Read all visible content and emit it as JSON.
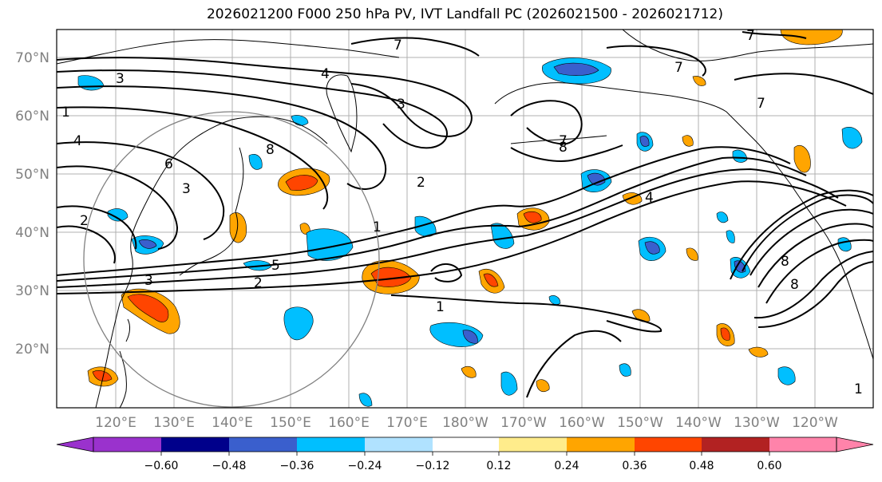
{
  "title": "2026021200 F000 250 hPa PV, IVT Landfall PC (2026021500 - 2026021712)",
  "lat_labels": [
    "70°N",
    "60°N",
    "50°N",
    "40°N",
    "30°N",
    "20°N"
  ],
  "lon_labels": [
    "120°E",
    "130°E",
    "140°E",
    "150°E",
    "160°E",
    "170°E",
    "180°W",
    "170°W",
    "160°W",
    "150°W",
    "140°W",
    "130°W",
    "120°W"
  ],
  "colorbar": {
    "colors": [
      "#9a32cd",
      "#00008b",
      "#3a5fcd",
      "#00bfff",
      "#b0e2ff",
      "#ffffff",
      "#ffec8b",
      "#ffa500",
      "#ff4500",
      "#b22222",
      "#ff83aa"
    ],
    "tick_labels": [
      "−0.60",
      "−0.48",
      "−0.36",
      "−0.24",
      "−0.12",
      "0.12",
      "0.24",
      "0.36",
      "0.48",
      "0.60"
    ]
  },
  "contour_labels": [
    "7",
    "3",
    "4",
    "7",
    "3",
    "1",
    "8",
    "4",
    "7",
    "7",
    "8",
    "6",
    "2",
    "3",
    "1",
    "2",
    "3",
    "5",
    "1",
    "2",
    "1",
    "4",
    "8",
    "8",
    "7"
  ]
}
